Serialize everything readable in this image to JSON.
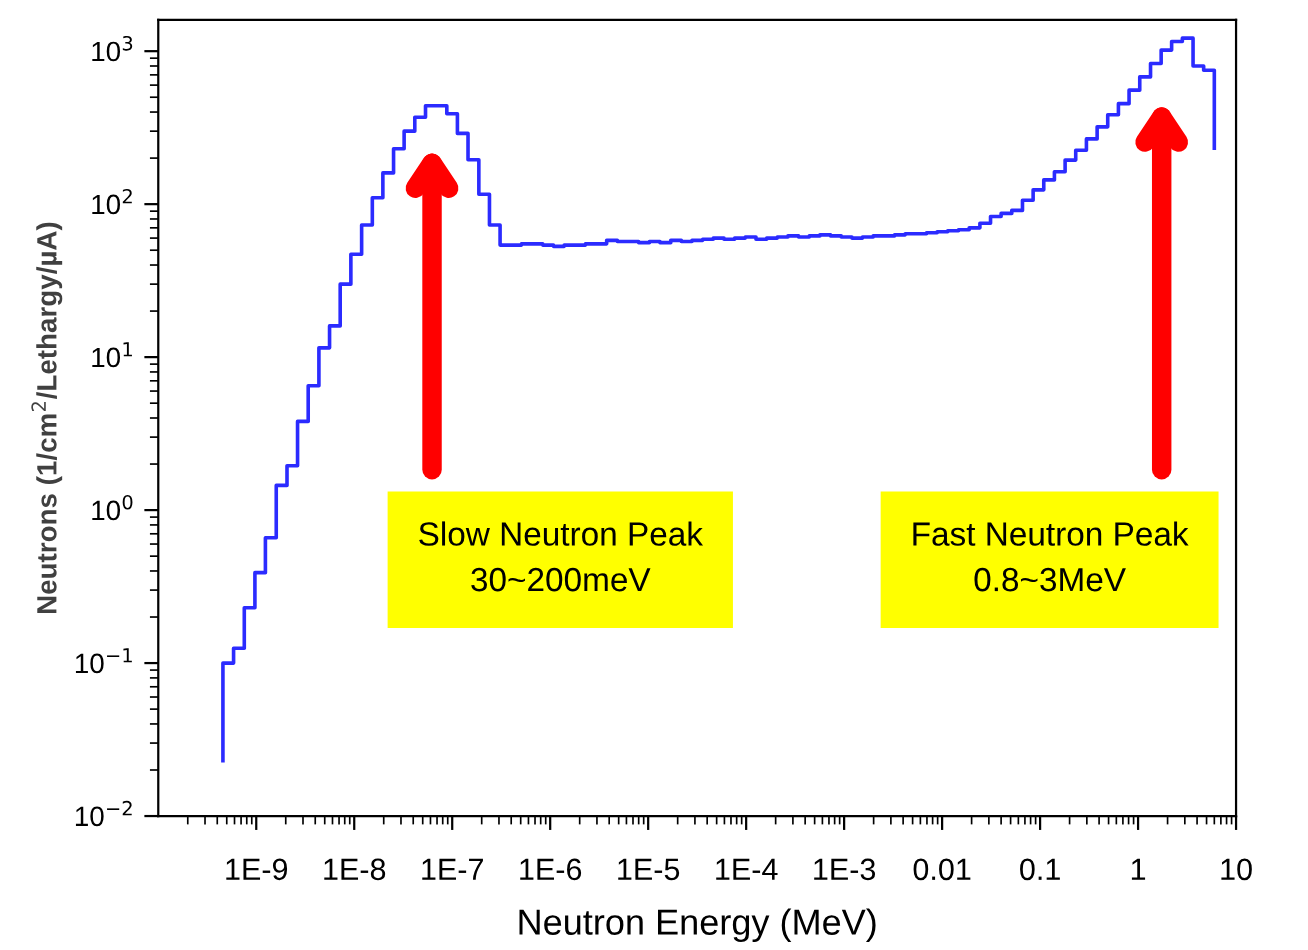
{
  "chart_data": {
    "type": "step",
    "xlabel": "Neutron Energy (MeV)",
    "ylabel": "Neutrons (1/cm$^{2}$/Lethargy/µA)",
    "log": "xy",
    "grid": false,
    "xlim": [
      1e-10,
      10
    ],
    "ylim": [
      0.01,
      1600
    ],
    "xticks": [
      {
        "value": 1e-09,
        "label": "1E-9"
      },
      {
        "value": 1e-08,
        "label": "1E-8"
      },
      {
        "value": 1e-07,
        "label": "1E-7"
      },
      {
        "value": 1e-06,
        "label": "1E-6"
      },
      {
        "value": 1e-05,
        "label": "1E-5"
      },
      {
        "value": 0.0001,
        "label": "1E-4"
      },
      {
        "value": 0.001,
        "label": "1E-3"
      },
      0.01,
      0.1,
      1,
      10
    ],
    "yticks": [
      {
        "value": 0.01,
        "label": "10$^{−2}$"
      },
      {
        "value": 0.1,
        "label": "10$^{−1}$"
      },
      {
        "value": 1,
        "label": "10$^{0}$"
      },
      {
        "value": 10,
        "label": "10$^{1}$"
      },
      {
        "value": 100,
        "label": "10$^{2}$"
      },
      {
        "value": 1000,
        "label": "10$^{3}$"
      }
    ],
    "series": [
      {
        "color": "#2b2bff",
        "x": [
          4.57e-10,
          4.57e-10,
          5.87e-10,
          7.55e-10,
          9.69e-10,
          1.24e-09,
          1.6e-09,
          2.06e-09,
          2.64e-09,
          3.39e-09,
          4.36e-09,
          5.6e-09,
          7.19e-09,
          9.24e-09,
          1.19e-08,
          1.53e-08,
          1.96e-08,
          2.52e-08,
          3.23e-08,
          4.15e-08,
          5.34e-08,
          6.85e-08,
          8.81e-08,
          1.13e-07,
          1.45e-07,
          1.87e-07,
          2.4e-07,
          3.08e-07,
          3.96e-07,
          5.09e-07,
          6.53e-07,
          8.39e-07,
          1.08e-06,
          1.39e-06,
          1.78e-06,
          2.29e-06,
          2.94e-06,
          3.77e-06,
          4.85e-06,
          6.23e-06,
          8e-06,
          1.03e-05,
          1.32e-05,
          1.7e-05,
          2.18e-05,
          2.8e-05,
          3.6e-05,
          4.62e-05,
          5.94e-05,
          7.63e-05,
          9.8e-05,
          0.000126,
          0.000162,
          0.000208,
          0.000267,
          0.000343,
          0.000441,
          0.000566,
          0.000727,
          0.000934,
          0.0012,
          0.00154,
          0.00198,
          0.00254,
          0.00327,
          0.0042,
          0.0054,
          0.00693,
          0.0089,
          0.0114,
          0.0147,
          0.0189,
          0.0243,
          0.0312,
          0.04,
          0.0514,
          0.0661,
          0.0849,
          0.109,
          0.14,
          0.18,
          0.231,
          0.297,
          0.382,
          0.49,
          0.63,
          0.809,
          1.04,
          1.34,
          1.72,
          2.2,
          2.83,
          3.64,
          4.67,
          6.0
        ],
        "values": [
          0.023,
          0.1,
          0.125,
          0.23,
          0.39,
          0.66,
          1.45,
          1.95,
          3.8,
          6.5,
          11.5,
          16,
          30,
          47,
          73,
          110,
          160,
          230,
          300,
          370,
          440,
          440,
          390,
          290,
          195,
          116,
          73,
          54,
          54,
          55,
          55,
          54,
          53,
          54,
          54,
          55,
          55,
          58,
          57,
          57,
          56,
          57,
          56,
          58,
          57,
          58,
          59,
          60,
          59,
          60,
          61,
          59,
          60,
          61,
          62,
          61,
          62,
          63,
          62,
          61,
          60,
          61,
          62,
          62,
          63,
          64,
          64,
          65,
          66,
          67,
          68,
          70,
          75,
          83,
          87,
          91,
          106,
          124,
          144,
          163,
          194,
          225,
          267,
          320,
          384,
          454,
          556,
          679,
          830,
          1016,
          1156,
          1217,
          800,
          750,
          232
        ]
      }
    ],
    "annotations": [
      "Slow Neutron Peak\n30~200meV",
      "Fast Neutron Peak\n0.8~3MeV"
    ]
  }
}
